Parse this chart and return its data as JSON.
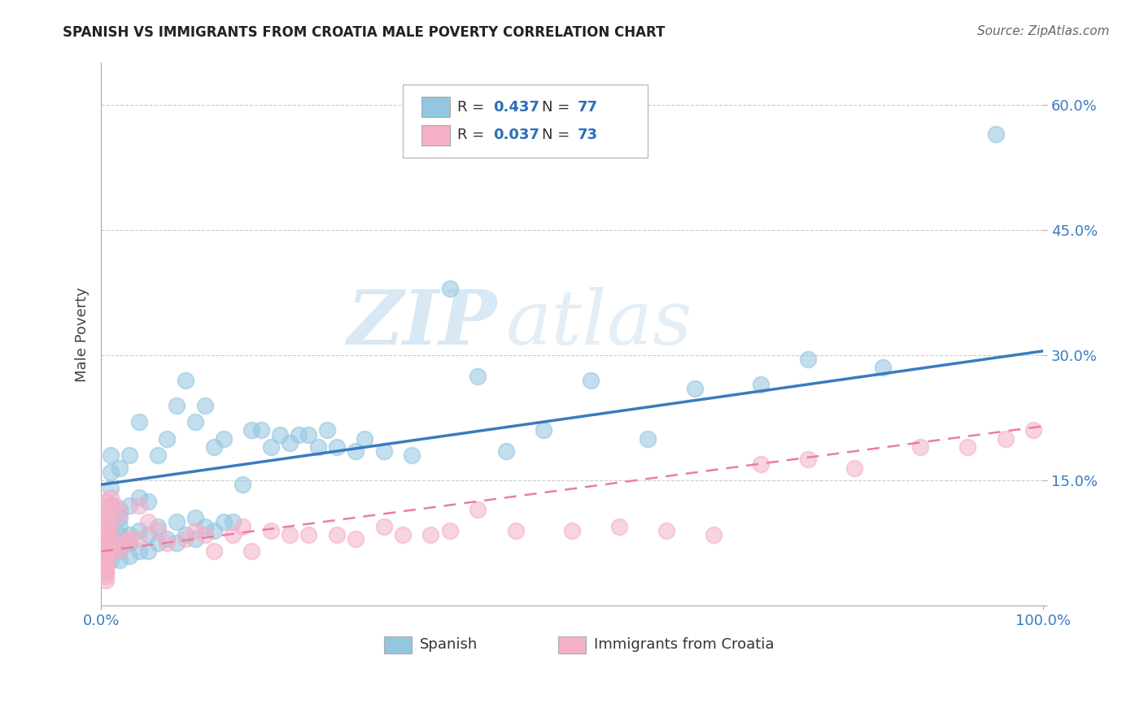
{
  "title": "SPANISH VS IMMIGRANTS FROM CROATIA MALE POVERTY CORRELATION CHART",
  "source": "Source: ZipAtlas.com",
  "ylabel": "Male Poverty",
  "xlim": [
    0,
    1.0
  ],
  "ylim": [
    0,
    0.65
  ],
  "yticks": [
    0.0,
    0.15,
    0.3,
    0.45,
    0.6
  ],
  "ytick_labels": [
    "",
    "15.0%",
    "30.0%",
    "45.0%",
    "60.0%"
  ],
  "watermark_zip": "ZIP",
  "watermark_atlas": "atlas",
  "blue_line_color": "#3a7bbf",
  "pink_line_color": "#e87fa0",
  "blue_scatter_color": "#93c6e0",
  "pink_scatter_color": "#f4b0c8",
  "grid_color": "#cccccc",
  "axis_label_color": "#3a7bbf",
  "background_color": "#ffffff",
  "legend_blue_r": "0.437",
  "legend_blue_n": "77",
  "legend_pink_r": "0.037",
  "legend_pink_n": "73",
  "spanish_x": [
    0.01,
    0.01,
    0.01,
    0.01,
    0.01,
    0.01,
    0.01,
    0.01,
    0.01,
    0.01,
    0.01,
    0.02,
    0.02,
    0.02,
    0.02,
    0.02,
    0.02,
    0.02,
    0.02,
    0.03,
    0.03,
    0.03,
    0.03,
    0.03,
    0.04,
    0.04,
    0.04,
    0.04,
    0.05,
    0.05,
    0.05,
    0.06,
    0.06,
    0.06,
    0.07,
    0.07,
    0.08,
    0.08,
    0.08,
    0.09,
    0.09,
    0.1,
    0.1,
    0.1,
    0.11,
    0.11,
    0.12,
    0.12,
    0.13,
    0.13,
    0.14,
    0.15,
    0.16,
    0.17,
    0.18,
    0.19,
    0.2,
    0.21,
    0.22,
    0.23,
    0.24,
    0.25,
    0.27,
    0.28,
    0.3,
    0.33,
    0.37,
    0.4,
    0.43,
    0.47,
    0.52,
    0.58,
    0.63,
    0.7,
    0.75,
    0.83,
    0.95
  ],
  "spanish_y": [
    0.055,
    0.065,
    0.075,
    0.08,
    0.09,
    0.1,
    0.11,
    0.12,
    0.14,
    0.16,
    0.18,
    0.055,
    0.065,
    0.075,
    0.085,
    0.095,
    0.105,
    0.115,
    0.165,
    0.06,
    0.075,
    0.085,
    0.12,
    0.18,
    0.065,
    0.09,
    0.13,
    0.22,
    0.065,
    0.085,
    0.125,
    0.075,
    0.095,
    0.18,
    0.08,
    0.2,
    0.075,
    0.1,
    0.24,
    0.085,
    0.27,
    0.08,
    0.105,
    0.22,
    0.095,
    0.24,
    0.09,
    0.19,
    0.1,
    0.2,
    0.1,
    0.145,
    0.21,
    0.21,
    0.19,
    0.205,
    0.195,
    0.205,
    0.205,
    0.19,
    0.21,
    0.19,
    0.185,
    0.2,
    0.185,
    0.18,
    0.38,
    0.275,
    0.185,
    0.21,
    0.27,
    0.2,
    0.26,
    0.265,
    0.295,
    0.285,
    0.565
  ],
  "croatia_x": [
    0.005,
    0.005,
    0.005,
    0.005,
    0.005,
    0.005,
    0.005,
    0.005,
    0.005,
    0.005,
    0.005,
    0.005,
    0.005,
    0.005,
    0.005,
    0.005,
    0.005,
    0.005,
    0.005,
    0.005,
    0.005,
    0.005,
    0.005,
    0.005,
    0.005,
    0.01,
    0.01,
    0.01,
    0.01,
    0.01,
    0.01,
    0.01,
    0.015,
    0.015,
    0.02,
    0.02,
    0.025,
    0.03,
    0.03,
    0.04,
    0.04,
    0.05,
    0.06,
    0.07,
    0.09,
    0.1,
    0.11,
    0.12,
    0.14,
    0.15,
    0.16,
    0.18,
    0.2,
    0.22,
    0.25,
    0.27,
    0.3,
    0.32,
    0.35,
    0.37,
    0.4,
    0.44,
    0.5,
    0.55,
    0.6,
    0.65,
    0.7,
    0.75,
    0.8,
    0.87,
    0.92,
    0.96,
    0.99
  ],
  "croatia_y": [
    0.04,
    0.045,
    0.05,
    0.055,
    0.06,
    0.065,
    0.07,
    0.075,
    0.08,
    0.085,
    0.09,
    0.095,
    0.1,
    0.105,
    0.11,
    0.115,
    0.12,
    0.125,
    0.03,
    0.035,
    0.04,
    0.045,
    0.05,
    0.055,
    0.06,
    0.07,
    0.08,
    0.09,
    0.1,
    0.11,
    0.12,
    0.13,
    0.07,
    0.12,
    0.065,
    0.11,
    0.075,
    0.08,
    0.08,
    0.08,
    0.12,
    0.1,
    0.09,
    0.075,
    0.08,
    0.09,
    0.085,
    0.065,
    0.085,
    0.095,
    0.065,
    0.09,
    0.085,
    0.085,
    0.085,
    0.08,
    0.095,
    0.085,
    0.085,
    0.09,
    0.115,
    0.09,
    0.09,
    0.095,
    0.09,
    0.085,
    0.17,
    0.175,
    0.165,
    0.19,
    0.19,
    0.2,
    0.21
  ]
}
